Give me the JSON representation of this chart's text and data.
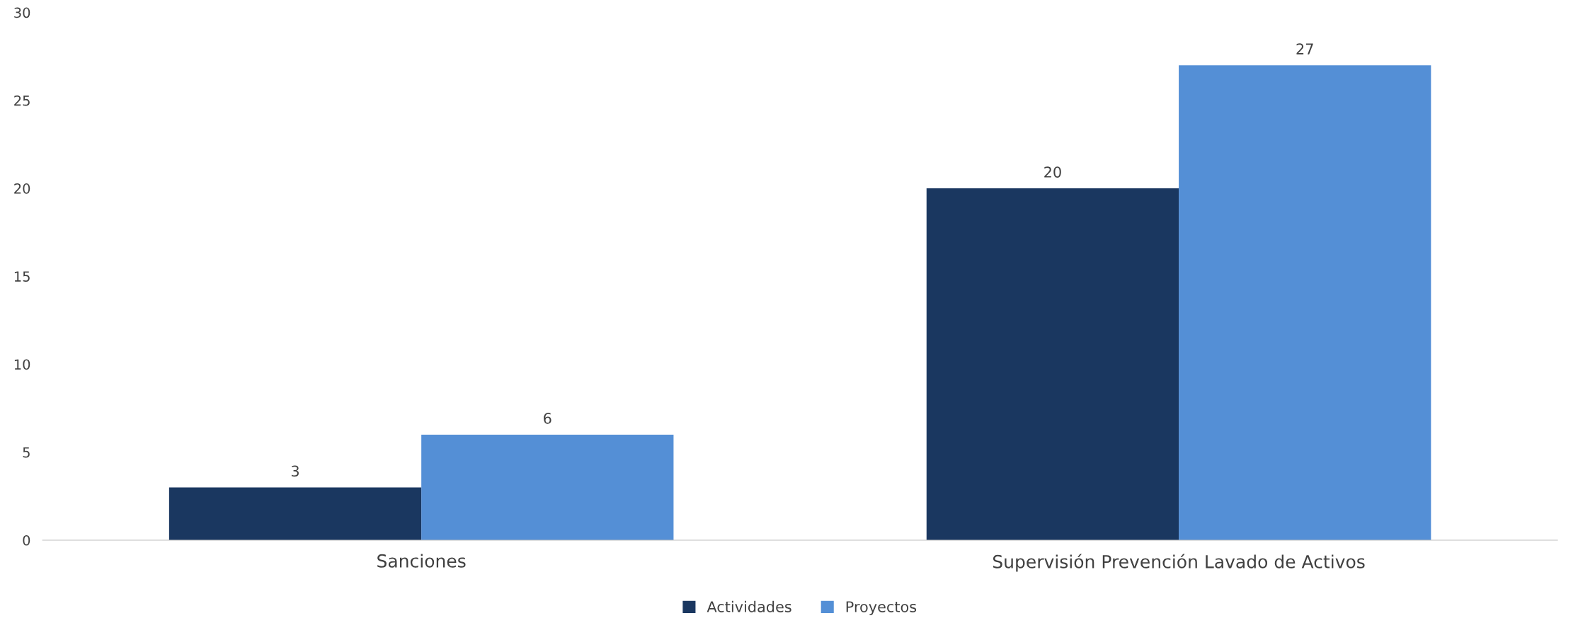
{
  "chart_data": {
    "type": "bar",
    "categories": [
      "Sanciones",
      "Supervisión Prevención Lavado de Activos"
    ],
    "series": [
      {
        "name": "Actividades",
        "color": "#1a3760",
        "values": [
          3,
          20
        ]
      },
      {
        "name": "Proyectos",
        "color": "#548fd6",
        "values": [
          6,
          27
        ]
      }
    ],
    "ylim": [
      0,
      30
    ],
    "yticks": [
      0,
      5,
      10,
      15,
      20,
      25,
      30
    ],
    "grid": false,
    "legend": "bottom",
    "data_labels": true
  }
}
